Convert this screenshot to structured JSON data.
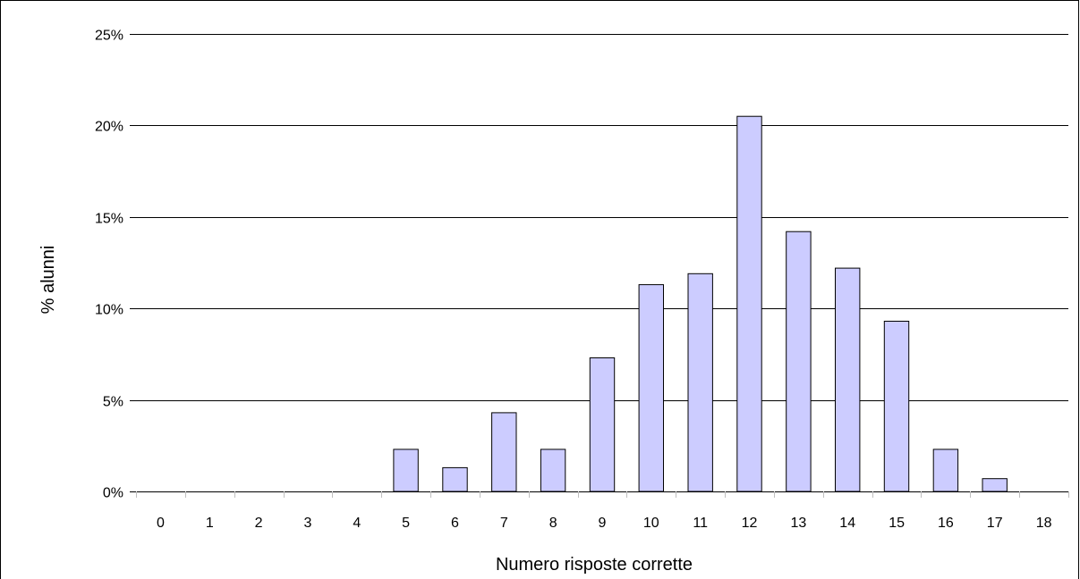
{
  "chart_data": {
    "type": "bar",
    "title": "",
    "xlabel": "Numero risposte corrette",
    "ylabel": "% alunni",
    "categories": [
      "0",
      "1",
      "2",
      "3",
      "4",
      "5",
      "6",
      "7",
      "8",
      "9",
      "10",
      "11",
      "12",
      "13",
      "14",
      "15",
      "16",
      "17",
      "18"
    ],
    "values": [
      0,
      0,
      0,
      0,
      0,
      2.3,
      1.3,
      4.3,
      2.3,
      7.3,
      11.3,
      11.9,
      20.5,
      14.2,
      12.2,
      9.3,
      2.3,
      0.7,
      0
    ],
    "ylim": [
      0,
      25
    ],
    "yticks": [
      "0%",
      "5%",
      "10%",
      "15%",
      "20%",
      "25%"
    ],
    "grid": true,
    "legend": "none",
    "colors": {
      "bar_fill": "#ccccff",
      "bar_stroke": "#000000",
      "grid": "#000000"
    }
  }
}
